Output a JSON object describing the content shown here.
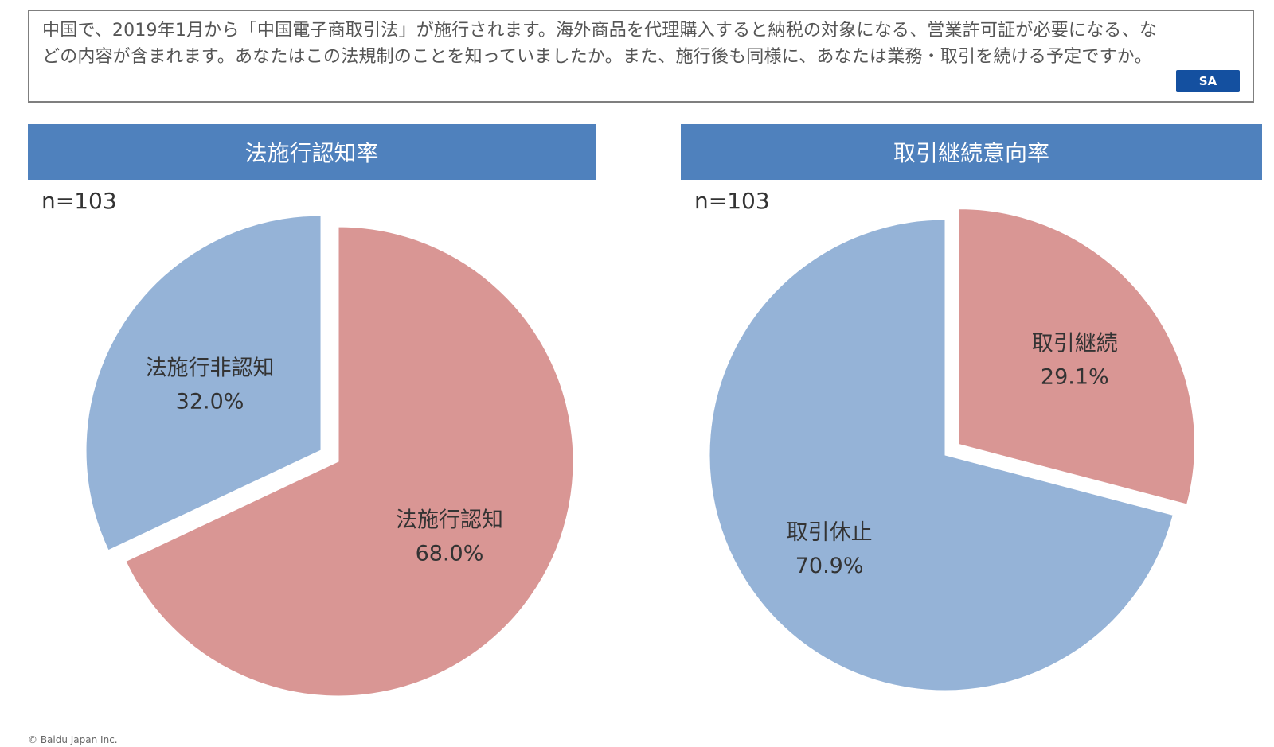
{
  "question": {
    "text": "中国で、2019年1月から「中国電子商取引法」が施行されます。海外商品を代理購入すると納税の対象になる、営業許可証が必要になる、などの内容が含まれます。あなたはこの法規制のことを知っていましたか。また、施行後も同様に、あなたは業務・取引を続ける予定ですか。",
    "badge": "SA"
  },
  "colors": {
    "red": "#d99694",
    "blue": "#95b3d7",
    "header": "#4f81bd",
    "badge": "#1450a0"
  },
  "panels": [
    {
      "title": "法施行認知率",
      "n": "n=103"
    },
    {
      "title": "取引継続意向率",
      "n": "n=103"
    }
  ],
  "chart_data": [
    {
      "type": "pie",
      "title": "法施行認知率",
      "slices": [
        {
          "label": "法施行認知",
          "value": 68.0,
          "value_label": "68.0%",
          "color": "#d99694",
          "exploded": false
        },
        {
          "label": "法施行非認知",
          "value": 32.0,
          "value_label": "32.0%",
          "color": "#95b3d7",
          "exploded": true
        }
      ]
    },
    {
      "type": "pie",
      "title": "取引継続意向率",
      "slices": [
        {
          "label": "取引継続",
          "value": 29.1,
          "value_label": "29.1%",
          "color": "#d99694",
          "exploded": true
        },
        {
          "label": "取引休止",
          "value": 70.9,
          "value_label": "70.9%",
          "color": "#95b3d7",
          "exploded": false
        }
      ]
    }
  ],
  "footer": {
    "copyright": "© Baidu Japan Inc."
  }
}
